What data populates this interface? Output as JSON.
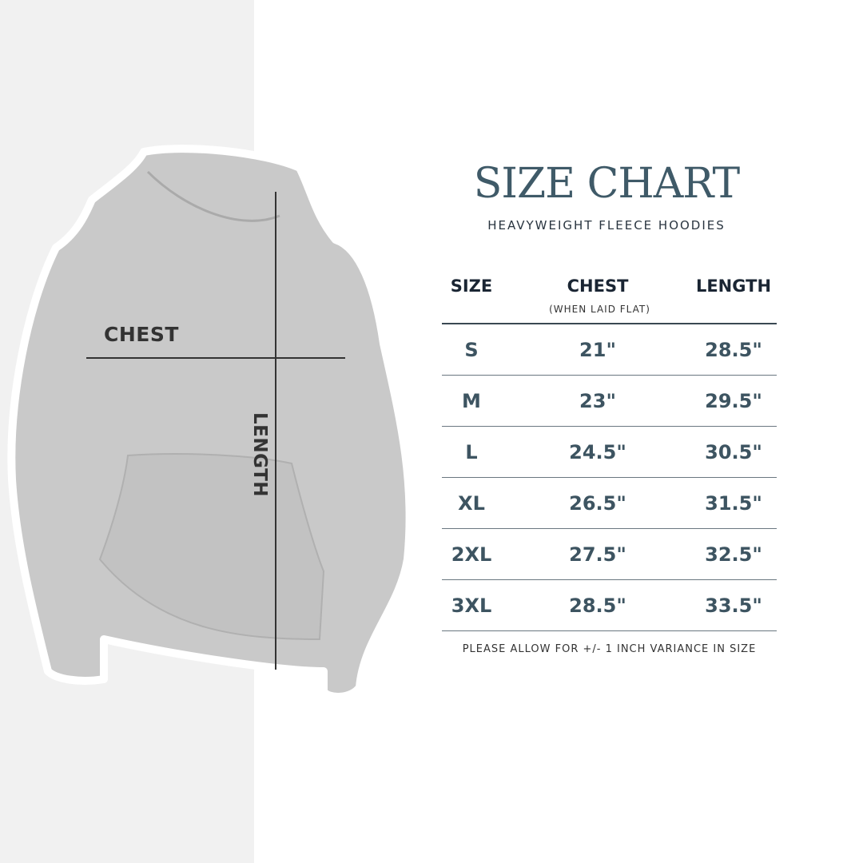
{
  "title": "SIZE CHART",
  "subtitle": "HEAVYWEIGHT FLEECE HOODIES",
  "image_labels": {
    "chest": "CHEST",
    "length": "LENGTH"
  },
  "table": {
    "headers": {
      "size": "SIZE",
      "chest": "CHEST",
      "chest_note": "(WHEN LAID FLAT)",
      "length": "LENGTH"
    },
    "rows": [
      {
        "size": "S",
        "chest": "21\"",
        "length": "28.5\""
      },
      {
        "size": "M",
        "chest": "23\"",
        "length": "29.5\""
      },
      {
        "size": "L",
        "chest": "24.5\"",
        "length": "30.5\""
      },
      {
        "size": "XL",
        "chest": "26.5\"",
        "length": "31.5\""
      },
      {
        "size": "2XL",
        "chest": "27.5\"",
        "length": "32.5\""
      },
      {
        "size": "3XL",
        "chest": "28.5\"",
        "length": "33.5\""
      }
    ]
  },
  "note": "PLEASE ALLOW FOR +/- 1 INCH VARIANCE IN SIZE",
  "colors": {
    "title": "#3f5a68",
    "values": "#3d5461",
    "headers": "#1a2533",
    "hoodie": "#c9c9c9"
  }
}
